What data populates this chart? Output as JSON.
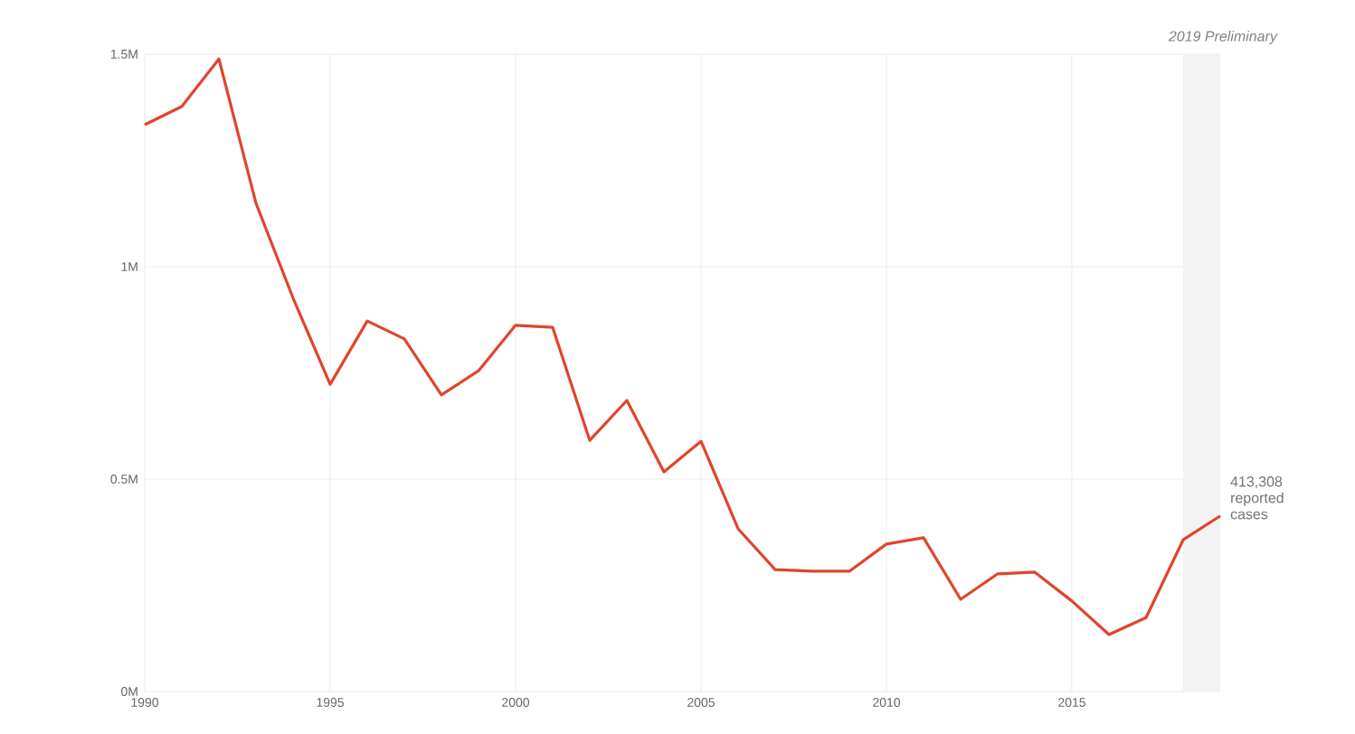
{
  "chart_data": {
    "type": "line",
    "x": [
      1990,
      1991,
      1992,
      1993,
      1994,
      1995,
      1996,
      1997,
      1998,
      1999,
      2000,
      2001,
      2002,
      2003,
      2004,
      2005,
      2006,
      2007,
      2008,
      2009,
      2010,
      2011,
      2012,
      2013,
      2014,
      2015,
      2016,
      2017,
      2018,
      2019
    ],
    "series": [
      {
        "color": "#e0452c",
        "values": [
          1334000,
          1377000,
          1489000,
          1149000,
          926000,
          723000,
          872000,
          830000,
          698000,
          755000,
          862000,
          857000,
          591000,
          685000,
          517000,
          589000,
          383000,
          287000,
          283000,
          283000,
          347000,
          362000,
          217000,
          277000,
          281000,
          213000,
          134000,
          174000,
          357000,
          413308
        ]
      }
    ],
    "xlim": [
      1990,
      2019
    ],
    "ylim": [
      0,
      1500000
    ],
    "xticks": [
      1990,
      1995,
      2000,
      2005,
      2010,
      2015
    ],
    "yticks": [
      {
        "value": 0,
        "label": "0M"
      },
      {
        "value": 500000,
        "label": "0.5M"
      },
      {
        "value": 1000000,
        "label": "1M"
      },
      {
        "value": 1500000,
        "label": "1.5M"
      }
    ],
    "grid": true,
    "marker": "none",
    "line_style": "solid",
    "bands": [
      {
        "axis": "x",
        "from": 2018,
        "to": 2019,
        "label": "2019 Preliminary",
        "color": "#f3f3f3"
      }
    ],
    "annotations": [
      {
        "text": "413,308 reported cases",
        "x": 2019,
        "y": 413308
      }
    ]
  }
}
